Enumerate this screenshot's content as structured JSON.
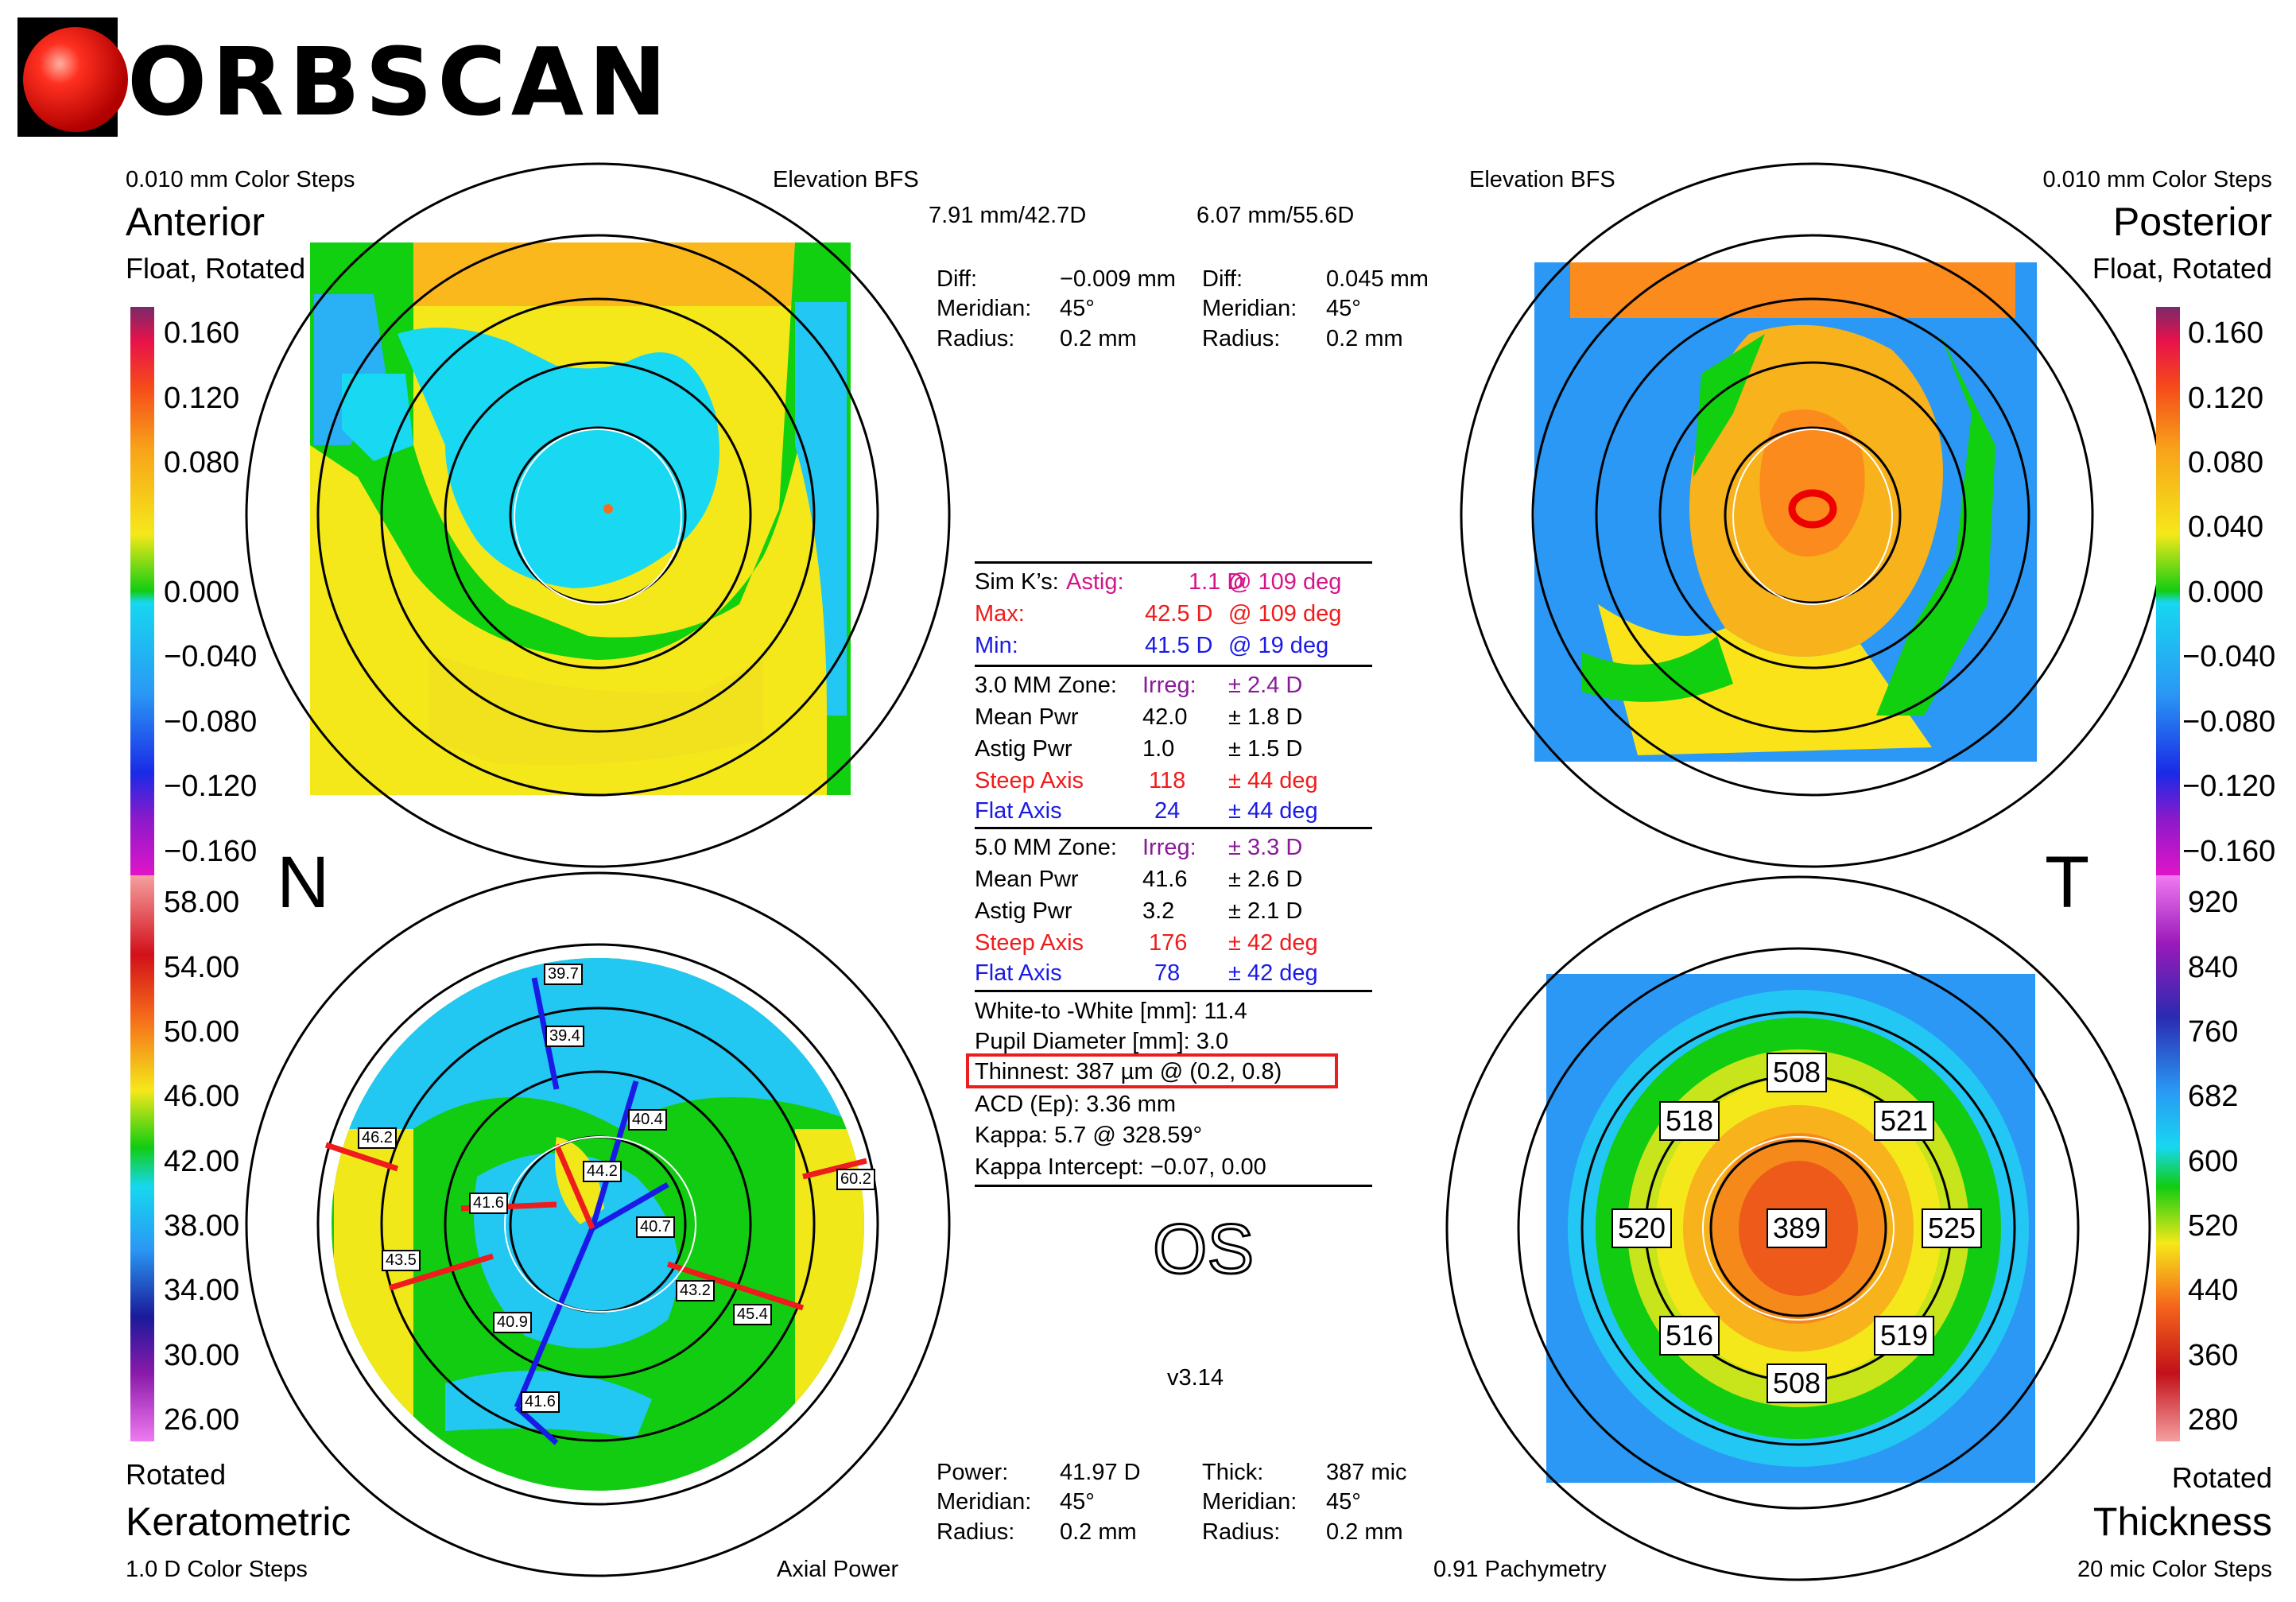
{
  "logo": {
    "text": "ORBSCAN"
  },
  "anterior": {
    "color_steps": "0.010 mm Color Steps",
    "map_type": "Elevation BFS",
    "title": "Anterior",
    "subtitle": "Float, Rotated",
    "bfs": "7.91 mm/42.7D",
    "diff_label": "Diff:",
    "diff_value": "−0.009 mm",
    "meridian_label": "Meridian:",
    "meridian_value": "45°",
    "radius_label": "Radius:",
    "radius_value": "0.2 mm"
  },
  "posterior": {
    "color_steps": "0.010 mm Color Steps",
    "map_type": "Elevation BFS",
    "title": "Posterior",
    "subtitle": "Float, Rotated",
    "bfs": "6.07 mm/55.6D",
    "diff_label": "Diff:",
    "diff_value": "0.045 mm",
    "meridian_label": "Meridian:",
    "meridian_value": "45°",
    "radius_label": "Radius:",
    "radius_value": "0.2 mm"
  },
  "elevation_scale": [
    "0.160",
    "0.120",
    "0.080",
    "0.040",
    "0.000",
    "−0.040",
    "−0.080",
    "−0.120",
    "−0.160"
  ],
  "anterior_scale": [
    "0.160",
    "0.120",
    "0.080",
    "",
    "0.000",
    "−0.040",
    "−0.080",
    "−0.120",
    "−0.160"
  ],
  "keratometric_scale": [
    "58.00",
    "54.00",
    "50.00",
    "46.00",
    "42.00",
    "38.00",
    "34.00",
    "30.00",
    "26.00"
  ],
  "thickness_scale": [
    "920",
    "840",
    "760",
    "682",
    "600",
    "520",
    "440",
    "360",
    "280"
  ],
  "orientation": {
    "nasal": "N",
    "temporal": "T"
  },
  "summary": {
    "simk_label": "Sim K’s:",
    "astig_label": "Astig:",
    "astig_value": "1.1 D",
    "astig_axis": "@ 109 deg",
    "max_label": "Max:",
    "max_value": "42.5 D",
    "max_axis": "@ 109 deg",
    "min_label": "Min:",
    "min_value": "41.5 D",
    "min_axis": "@ 19 deg",
    "zone3": {
      "zone_label": "3.0 MM Zone:",
      "irreg_label": "Irreg:",
      "irreg_value": "± 2.4 D",
      "mean_label": "Mean Pwr",
      "mean_value": "42.0",
      "mean_sd": "± 1.8 D",
      "astig_label": "Astig Pwr",
      "astig_value": "1.0",
      "astig_sd": "± 1.5 D",
      "steep_label": "Steep Axis",
      "steep_value": "118",
      "steep_sd": "± 44 deg",
      "flat_label": "Flat Axis",
      "flat_value": "24",
      "flat_sd": "± 44 deg"
    },
    "zone5": {
      "zone_label": "5.0 MM Zone:",
      "irreg_label": "Irreg:",
      "irreg_value": "± 3.3 D",
      "mean_label": "Mean Pwr",
      "mean_value": "41.6",
      "mean_sd": "± 2.6 D",
      "astig_label": "Astig Pwr",
      "astig_value": "3.2",
      "astig_sd": "± 2.1 D",
      "steep_label": "Steep Axis",
      "steep_value": "176",
      "steep_sd": "± 42 deg",
      "flat_label": "Flat Axis",
      "flat_value": "78",
      "flat_sd": "± 42 deg"
    },
    "wtw": "White-to -White [mm]: 11.4",
    "pupil": "Pupil Diameter [mm]: 3.0",
    "thinnest": "Thinnest: 387 µm @ (0.2, 0.8)",
    "acd": "ACD (Ep): 3.36 mm",
    "kappa": "Kappa: 5.7 @ 328.59°",
    "kappa_intercept": "Kappa Intercept: −0.07, 0.00"
  },
  "eye": "OS",
  "version": "v3.14",
  "keratometric": {
    "rotated": "Rotated",
    "title": "Keratometric",
    "color_steps": "1.0 D Color Steps",
    "map_type": "Axial Power",
    "power_label": "Power:",
    "power_value": "41.97 D",
    "meridian_label": "Meridian:",
    "meridian_value": "45°",
    "radius_label": "Radius:",
    "radius_value": "0.2 mm",
    "axis_labels": [
      "39.7",
      "39.4",
      "40.4",
      "44.2",
      "41.6",
      "40.7",
      "46.2",
      "43.5",
      "43.2",
      "45.4",
      "40.9",
      "41.6",
      "60.2"
    ]
  },
  "thickness": {
    "rotated": "Rotated",
    "title": "Thickness",
    "color_steps": "20 mic Color Steps",
    "map_type": "0.91 Pachymetry",
    "thick_label": "Thick:",
    "thick_value": "387 mic",
    "meridian_label": "Meridian:",
    "meridian_value": "45°",
    "radius_label": "Radius:",
    "radius_value": "0.2 mm",
    "values": [
      "508",
      "518",
      "521",
      "520",
      "389",
      "525",
      "516",
      "519",
      "508"
    ]
  }
}
